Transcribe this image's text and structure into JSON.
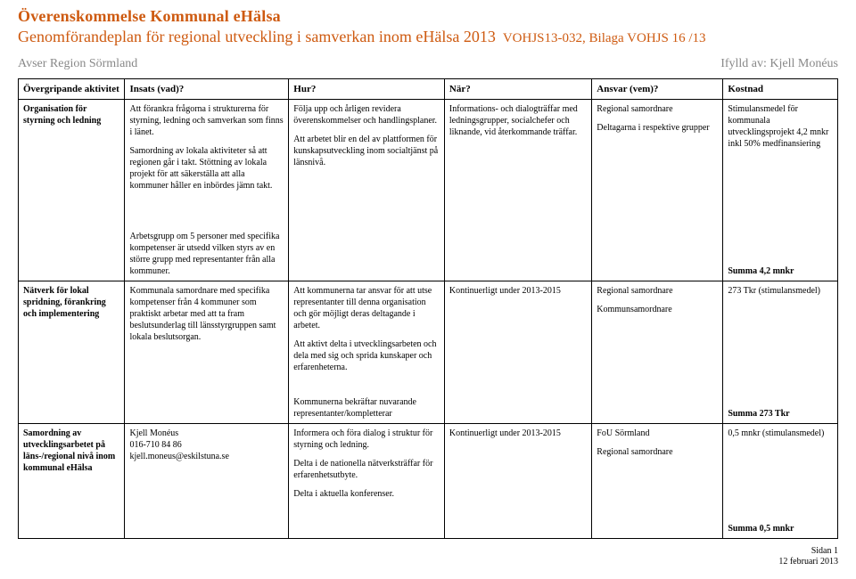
{
  "header": {
    "title": "Överenskommelse Kommunal eHälsa",
    "subtitle": "Genomförandeplan för regional utveckling i samverkan inom eHälsa 2013",
    "bilaga": "VOHJS13-032, Bilaga VOHJS 16 /13",
    "region": "Avser Region Sörmland",
    "ifylld": "Ifylld av: Kjell Monéus"
  },
  "cols": {
    "activity": "Övergripande aktivitet",
    "insats": "Insats (vad)?",
    "hur": "Hur?",
    "nar": "När?",
    "ansvar": "Ansvar (vem)?",
    "kostnad": "Kostnad"
  },
  "r1": {
    "activity": "Organisation för styrning och ledning",
    "insats_p1": "Att förankra frågorna i strukturerna för styrning, ledning och samverkan som finns i länet.",
    "insats_p2": "Samordning av lokala aktiviteter så att regionen går i takt. Stöttning av lokala projekt för att säkerställa att alla kommuner håller en inbördes jämn takt.",
    "hur_p1": "Följa upp och årligen revidera överenskommelser och handlingsplaner.",
    "hur_p2": "Att arbetet blir en del av plattformen för kunskapsutveckling inom socialtjänst på länsnivå.",
    "nar_p1": "Informations- och dialogträffar med ledningsgrupper, socialchefer och liknande, vid återkommande träffar.",
    "ansvar_p1": "Regional samordnare",
    "ansvar_p2": "Deltagarna i respektive grupper",
    "kostnad_p1": "Stimulansmedel för kommunala utvecklingsprojekt 4,2 mnkr inkl 50% medfinansiering"
  },
  "r1b": {
    "insats": "Arbetsgrupp om 5 personer med specifika kompetenser är utsedd vilken styrs av en större grupp med representanter från alla kommuner.",
    "kostnad": "Summa 4,2 mnkr"
  },
  "r2": {
    "activity": "Nätverk för lokal spridning, förankring och implementering",
    "insats": "Kommunala samordnare med specifika kompetenser från 4 kommuner som praktiskt arbetar med att ta fram beslutsunderlag till länsstyrgruppen samt lokala beslutsorgan.",
    "hur_p1": "Att kommunerna tar ansvar för att utse representanter till denna organisation och gör möjligt deras deltagande i arbetet.",
    "hur_p2": "Att aktivt delta i utvecklingsarbeten och dela med sig och sprida kunskaper och erfarenheterna.",
    "nar": "Kontinuerligt under 2013-2015",
    "ansvar_p1": "Regional samordnare",
    "ansvar_p2": "Kommunsamordnare",
    "kostnad": "273 Tkr (stimulansmedel)"
  },
  "r2b": {
    "hur": "Kommunerna bekräftar nuvarande representanter/kompletterar",
    "kostnad": "Summa 273 Tkr"
  },
  "r3": {
    "activity": "Samordning av utvecklingsarbetet på läns-/regional nivå inom kommunal eHälsa",
    "insats_p1": "Kjell Monéus",
    "insats_p2": "016-710 84 86",
    "insats_p3": "kjell.moneus@eskilstuna.se",
    "hur_p1": "Informera och föra dialog i struktur för styrning och ledning.",
    "hur_p2": "Delta i de nationella nätverksträffar för erfarenhetsutbyte.",
    "hur_p3": "Delta i aktuella konferenser.",
    "nar": "Kontinuerligt under 2013-2015",
    "ansvar_p1": "FoU Sörmland",
    "ansvar_p2": "Regional samordnare",
    "kostnad": "0,5 mnkr (stimulansmedel)"
  },
  "r3b": {
    "kostnad": "Summa 0,5 mnkr"
  },
  "footer": {
    "page": "Sidan 1",
    "date": "12 februari 2013"
  }
}
